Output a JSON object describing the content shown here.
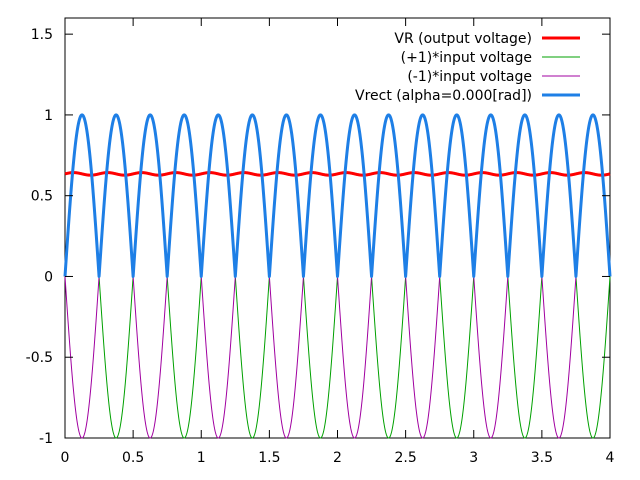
{
  "chart_data": {
    "type": "line",
    "title": "",
    "xlabel": "",
    "ylabel": "",
    "xlim": [
      0,
      4
    ],
    "ylim": [
      -1,
      1.6
    ],
    "x_ticks": [
      0,
      0.5,
      1,
      1.5,
      2,
      2.5,
      3,
      3.5,
      4
    ],
    "x_tick_labels": [
      "0",
      "0.5",
      "1",
      "1.5",
      "2",
      "2.5",
      "3",
      "3.5",
      "4"
    ],
    "y_ticks": [
      -1,
      -0.5,
      0,
      0.5,
      1,
      1.5
    ],
    "y_tick_labels": [
      "-1",
      "-0.5",
      "0",
      "0.5",
      "1",
      "1.5"
    ],
    "grid": false,
    "legend_position": "top-right",
    "series": [
      {
        "name": "VR (output voltage)",
        "color": "#ff0000",
        "width": "thick",
        "description_values": {
          "x_start": 0,
          "x_end": 4,
          "mean": 0.635,
          "ripple_amplitude": 0.008,
          "ripple_frequency": 4
        }
      },
      {
        "name": "(+1)*input voltage",
        "color": "#00a000",
        "width": "thin",
        "description_values": {
          "function": "sin",
          "amplitude": 1,
          "frequency": 2,
          "x_start": 0,
          "x_end": 4
        }
      },
      {
        "name": "(-1)*input voltage",
        "color": "#a000a0",
        "width": "thin",
        "description_values": {
          "function": "-sin",
          "amplitude": 1,
          "frequency": 2,
          "x_start": 0,
          "x_end": 4
        }
      },
      {
        "name": "Vrect (alpha=0.000[rad])",
        "color": "#1e7fe6",
        "width": "thick",
        "description_values": {
          "function": "|sin|",
          "amplitude": 1,
          "frequency": 2,
          "x_start": 0,
          "x_end": 4
        }
      }
    ]
  }
}
